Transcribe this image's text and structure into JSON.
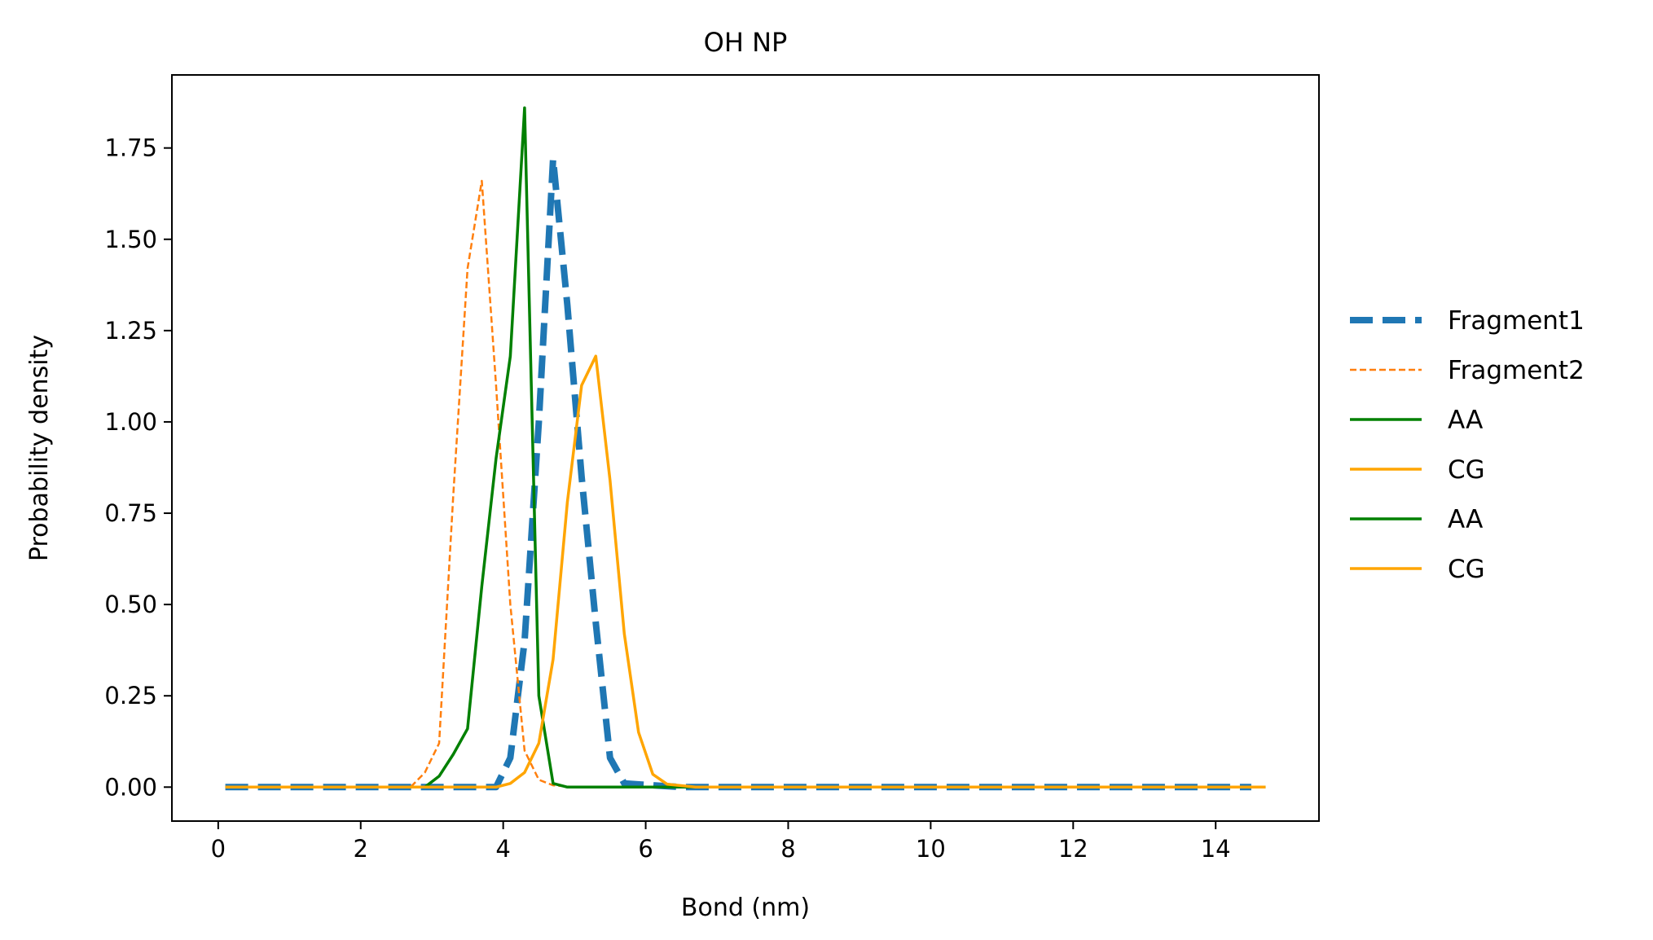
{
  "chart_data": {
    "type": "line",
    "title": "OH NP",
    "xlabel": "Bond (nm)",
    "ylabel": "Probability density",
    "xlim": [
      -0.65,
      15.45
    ],
    "ylim": [
      -0.093,
      1.95
    ],
    "xticks": [
      0,
      2,
      4,
      6,
      8,
      10,
      12,
      14
    ],
    "yticks": [
      0.0,
      0.25,
      0.5,
      0.75,
      1.0,
      1.25,
      1.5,
      1.75
    ],
    "ytick_labels": [
      "0.00",
      "0.25",
      "0.50",
      "0.75",
      "1.00",
      "1.25",
      "1.50",
      "1.75"
    ],
    "grid": false,
    "legend_position": "outside-right",
    "series": [
      {
        "name": "Fragment1",
        "color": "#1f77b4",
        "style": "dashed-thick",
        "x": [
          0.1,
          3.3,
          3.9,
          4.1,
          4.3,
          4.5,
          4.7,
          4.9,
          5.1,
          5.3,
          5.5,
          5.7,
          6.5,
          14.5
        ],
        "y": [
          0.0,
          0.0,
          0.0,
          0.08,
          0.4,
          1.0,
          1.72,
          1.32,
          0.85,
          0.45,
          0.08,
          0.01,
          0.0,
          0.0
        ]
      },
      {
        "name": "Fragment2",
        "color": "#ff7f0e",
        "style": "dashed-thin",
        "x": [
          0.1,
          2.7,
          2.9,
          3.1,
          3.3,
          3.5,
          3.7,
          3.9,
          4.1,
          4.3,
          4.5,
          4.7,
          5.0,
          14.5
        ],
        "y": [
          0.0,
          0.0,
          0.04,
          0.12,
          0.8,
          1.42,
          1.66,
          1.1,
          0.5,
          0.1,
          0.02,
          0.005,
          0.0,
          0.0
        ]
      },
      {
        "name": "AA",
        "color": "#008000",
        "style": "solid",
        "x": [
          0.1,
          2.9,
          3.1,
          3.3,
          3.5,
          3.7,
          3.9,
          4.1,
          4.3,
          4.5,
          4.7,
          4.9,
          6.0,
          14.7
        ],
        "y": [
          0.0,
          0.0,
          0.03,
          0.09,
          0.16,
          0.55,
          0.9,
          1.18,
          1.86,
          0.25,
          0.01,
          0.0,
          0.0,
          0.0
        ]
      },
      {
        "name": "CG",
        "color": "#ffa500",
        "style": "solid",
        "x": [
          0.1,
          3.7,
          3.9,
          4.1,
          4.3,
          4.5,
          4.7,
          4.9,
          5.1,
          5.3,
          5.5,
          5.7,
          5.9,
          6.1,
          6.3,
          6.7,
          14.7
        ],
        "y": [
          0.0,
          0.0,
          0.0,
          0.01,
          0.04,
          0.12,
          0.35,
          0.78,
          1.1,
          1.18,
          0.84,
          0.42,
          0.15,
          0.035,
          0.008,
          0.0,
          0.0
        ]
      },
      {
        "name": "AA",
        "color": "#008000",
        "style": "solid",
        "legend_only": true
      },
      {
        "name": "CG",
        "color": "#ffa500",
        "style": "solid",
        "legend_only": true
      }
    ]
  }
}
